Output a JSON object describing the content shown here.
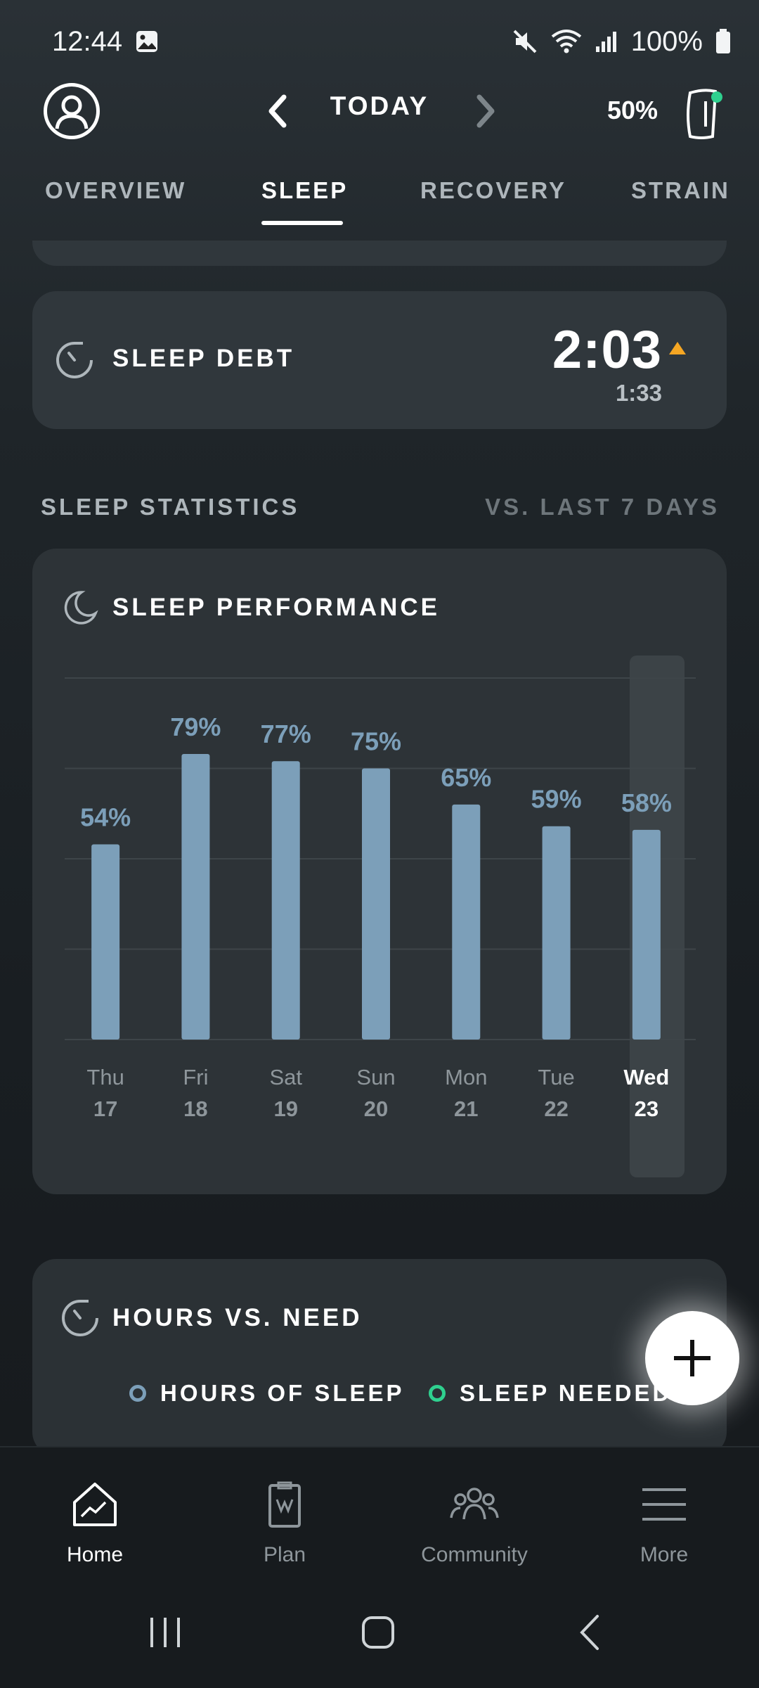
{
  "status_bar": {
    "time": "12:44",
    "battery": "100%"
  },
  "header": {
    "day_label": "TODAY",
    "strap_battery": "50%"
  },
  "tabs": [
    {
      "label": "OVERVIEW",
      "active": false
    },
    {
      "label": "SLEEP",
      "active": true
    },
    {
      "label": "RECOVERY",
      "active": false
    },
    {
      "label": "STRAIN",
      "active": false
    }
  ],
  "sleep_debt": {
    "title": "SLEEP DEBT",
    "value": "2:03",
    "sub_value": "1:33",
    "trend": "up",
    "trend_color": "#f5a623"
  },
  "statistics": {
    "label": "SLEEP STATISTICS",
    "compare_label": "VS. LAST 7 DAYS"
  },
  "sleep_performance": {
    "title": "SLEEP PERFORMANCE"
  },
  "chart_data": {
    "type": "bar",
    "categories": [
      "Thu 17",
      "Fri 18",
      "Sat 19",
      "Sun 20",
      "Mon 21",
      "Tue 22",
      "Wed 23"
    ],
    "day_names": [
      "Thu",
      "Fri",
      "Sat",
      "Sun",
      "Mon",
      "Tue",
      "Wed"
    ],
    "day_numbers": [
      "17",
      "18",
      "19",
      "20",
      "21",
      "22",
      "23"
    ],
    "values": [
      54,
      79,
      77,
      75,
      65,
      59,
      58
    ],
    "value_labels": [
      "54%",
      "79%",
      "77%",
      "75%",
      "65%",
      "59%",
      "58%"
    ],
    "ylim": [
      0,
      100
    ],
    "grid": true,
    "highlighted_category": "Wed 23",
    "bar_color": "#7c9fb9"
  },
  "hours_vs_need": {
    "title": "HOURS VS. NEED",
    "legend": [
      {
        "label": "HOURS OF SLEEP",
        "color": "#7c9fb9"
      },
      {
        "label": "SLEEP NEEDED",
        "color": "#2fd08f"
      }
    ]
  },
  "bottom_nav": [
    {
      "label": "Home",
      "icon": "home-icon",
      "active": true
    },
    {
      "label": "Plan",
      "icon": "plan-clipboard-icon",
      "active": false
    },
    {
      "label": "Community",
      "icon": "community-icon",
      "active": false
    },
    {
      "label": "More",
      "icon": "menu-icon",
      "active": false
    }
  ]
}
